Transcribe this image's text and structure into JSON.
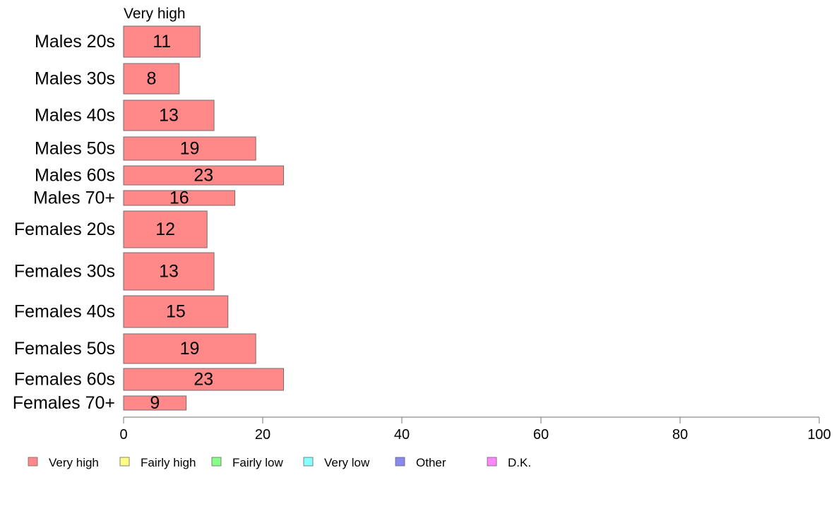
{
  "chart_data": {
    "type": "bar",
    "orientation": "horizontal",
    "title": "",
    "series_title": "Very high",
    "categories": [
      "Males 20s",
      "Males 30s",
      "Males 40s",
      "Males 50s",
      "Males 60s",
      "Males 70+",
      "Females 20s",
      "Females 30s",
      "Females 40s",
      "Females 50s",
      "Females 60s",
      "Females 70+"
    ],
    "series": [
      {
        "name": "Very high",
        "color": "#ff8888",
        "values": [
          11,
          8,
          13,
          19,
          23,
          16,
          12,
          13,
          15,
          19,
          23,
          9
        ]
      }
    ],
    "xlim": [
      0,
      100
    ],
    "xticks": [
      "0",
      "20",
      "40",
      "60",
      "80",
      "100"
    ],
    "xlabel": "",
    "ylabel": "",
    "grid": false,
    "legend_position": "bottom",
    "legend": [
      {
        "label": "Very high",
        "color": "#ff8888"
      },
      {
        "label": "Fairly high",
        "color": "#ffff88"
      },
      {
        "label": "Fairly low",
        "color": "#88ff88"
      },
      {
        "label": "Very low",
        "color": "#88ffff"
      },
      {
        "label": "Other",
        "color": "#8888ee"
      },
      {
        "label": "D.K.",
        "color": "#ff88ff"
      }
    ]
  }
}
